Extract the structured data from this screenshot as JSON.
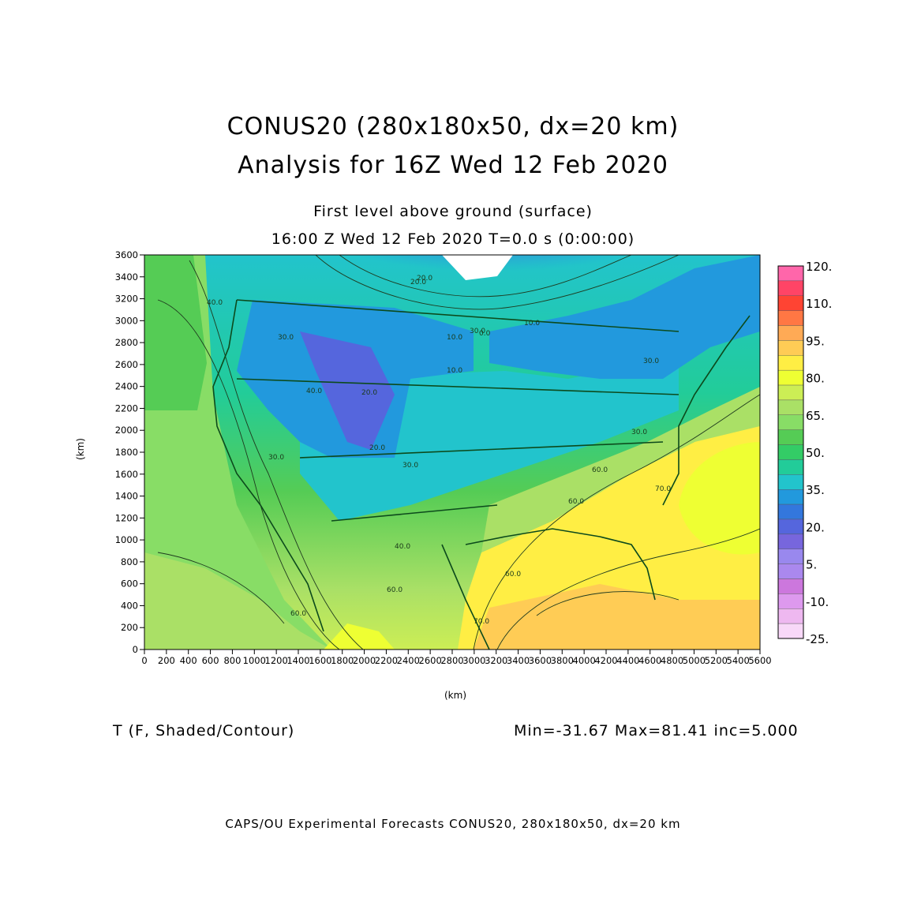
{
  "title": {
    "line1": "CONUS20 (280x180x50, dx=20 km)",
    "line2": "Analysis for 16Z Wed 12 Feb 2020"
  },
  "subtitle": {
    "level": "First level above ground (surface)",
    "time": "16:00 Z Wed 12 Feb 2020    T=0.0 s (0:00:00)"
  },
  "axes": {
    "x_unit": "(km)",
    "y_unit": "(km)",
    "x_ticks": [
      "0",
      "200",
      "400",
      "600",
      "800",
      "1000",
      "1200",
      "1400",
      "1600",
      "1800",
      "2000",
      "2200",
      "2400",
      "2600",
      "2800",
      "3000",
      "3200",
      "3400",
      "3600",
      "3800",
      "4000",
      "4200",
      "4400",
      "4600",
      "4800",
      "5000",
      "5200",
      "5400",
      "5600"
    ],
    "y_ticks": [
      "0",
      "200",
      "400",
      "600",
      "800",
      "1000",
      "1200",
      "1400",
      "1600",
      "1800",
      "2000",
      "2200",
      "2400",
      "2600",
      "2800",
      "3000",
      "3200",
      "3400",
      "3600"
    ],
    "x_range": [
      0,
      5600
    ],
    "y_range": [
      0,
      3600
    ]
  },
  "colorbar": {
    "labels": [
      "120.",
      "110.",
      "95.",
      "80.",
      "65.",
      "50.",
      "35.",
      "20.",
      "5.",
      "-10.",
      "-25."
    ],
    "colors": [
      "#ff66aa",
      "#ff4466",
      "#ff4433",
      "#ff7744",
      "#ffaa55",
      "#ffcc55",
      "#ffee44",
      "#eeff33",
      "#ccee55",
      "#aae066",
      "#88dd66",
      "#55cc55",
      "#33cc66",
      "#22cc99",
      "#22c4cc",
      "#2299dd",
      "#3377dd",
      "#5566dd",
      "#7766dd",
      "#9988ee",
      "#aa88ee",
      "#cc77dd",
      "#dd99ee",
      "#eeb8f0",
      "#f8d8f8"
    ]
  },
  "contour_labels": [
    "40.0",
    "30.0",
    "20.0",
    "10.0",
    "10.0",
    "20.0",
    "30.0",
    "40.0",
    "60.0",
    "60.0",
    "70.0",
    "70.0",
    "20.0",
    "30.0",
    "20.0",
    "40.0",
    "60.0",
    "30.0",
    "30.0",
    "60.0",
    "60.0",
    "10.0",
    "0.0",
    "30.0"
  ],
  "footer": {
    "variable": "T (F, Shaded/Contour)",
    "stats": "Min=-31.67  Max=81.41  inc=5.000",
    "credit": "CAPS/OU Experimental Forecasts  CONUS20, 280x180x50, dx=20 km"
  }
}
